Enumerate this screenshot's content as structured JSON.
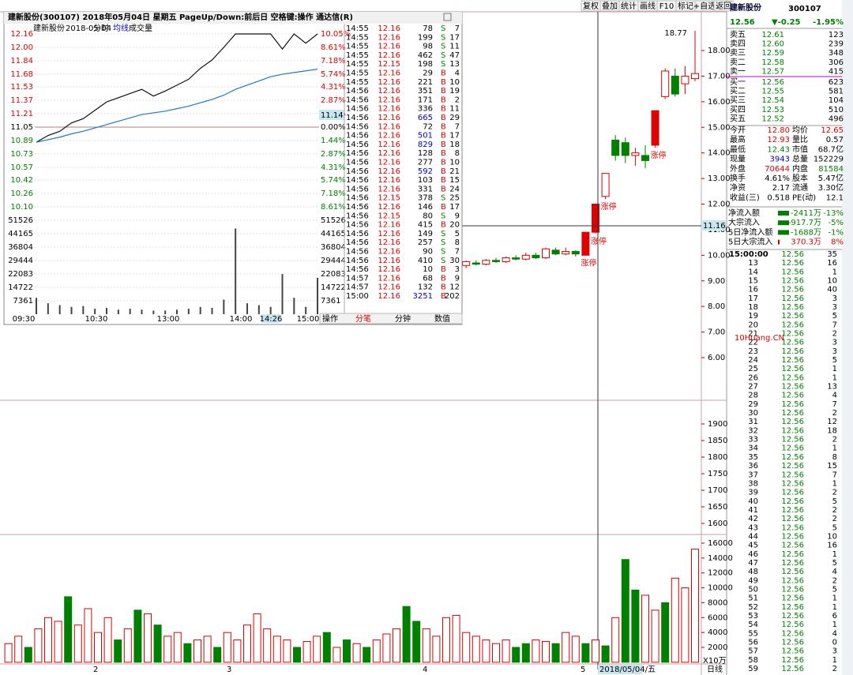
{
  "toolbar": {
    "buttons": [
      "复权",
      "叠加",
      "统计",
      "画线",
      "F10",
      "标记",
      "+自选",
      "返回"
    ]
  },
  "popup": {
    "title": "建新股份(300107) 2018年05月04日 星期五 PageUp/Down:前后日 空格键:操作 通达信(R)",
    "header": {
      "name": "建新股份",
      "date": "2018-05-04",
      "mode": "分时",
      "avg": "均线",
      "vol": "成交量"
    },
    "price_ticks": [
      "12.16",
      "12.00",
      "11.84",
      "11.68",
      "11.53",
      "11.37",
      "11.21",
      "11.05",
      "10.89",
      "10.73",
      "10.57",
      "10.42",
      "10.26",
      "10.10"
    ],
    "pct_ticks": [
      "10.05%",
      "8.61%",
      "7.18%",
      "5.74%",
      "4.31%",
      "2.87%",
      "1.44%",
      "0.00%",
      "1.44%",
      "2.87%",
      "4.31%",
      "5.74%",
      "7.18%",
      "8.61%"
    ],
    "vol_ticks": [
      "51526",
      "44165",
      "36804",
      "29444",
      "22083",
      "14722",
      "7361"
    ],
    "time_ticks": [
      "09:30",
      "10:30",
      "13:00",
      "14:00",
      "14:26",
      "15:00"
    ],
    "current": "11.14",
    "price": [
      10.87,
      10.95,
      11.0,
      11.1,
      11.15,
      11.25,
      11.35,
      11.4,
      11.45,
      11.5,
      11.42,
      11.48,
      11.55,
      11.62,
      11.75,
      11.85,
      12.0,
      12.16,
      12.16,
      12.16,
      12.16,
      11.98,
      12.16,
      12.05,
      12.16
    ],
    "avg": [
      10.87,
      10.9,
      10.93,
      10.97,
      11.0,
      11.04,
      11.08,
      11.12,
      11.16,
      11.2,
      11.22,
      11.24,
      11.27,
      11.3,
      11.34,
      11.38,
      11.43,
      11.5,
      11.55,
      11.6,
      11.65,
      11.68,
      11.7,
      11.72,
      11.74
    ],
    "volume": [
      9000,
      6000,
      5000,
      4000,
      4500,
      3000,
      3500,
      2500,
      3000,
      2500,
      2000,
      2000,
      2500,
      3000,
      4000,
      3500,
      8000,
      47000,
      6000,
      5000,
      4000,
      22000,
      9000,
      4000,
      20000
    ],
    "tabs": [
      "操作",
      "分笔",
      "分钟",
      "数值"
    ],
    "trades": [
      [
        "14:55",
        "12.16",
        "78",
        "S",
        "7"
      ],
      [
        "14:55",
        "12.16",
        "199",
        "S",
        "17"
      ],
      [
        "14:55",
        "12.16",
        "98",
        "S",
        "11"
      ],
      [
        "14:55",
        "12.16",
        "462",
        "S",
        "47"
      ],
      [
        "14:55",
        "12.15",
        "198",
        "S",
        "13"
      ],
      [
        "14:55",
        "12.16",
        "29",
        "B",
        "4"
      ],
      [
        "14:55",
        "12.16",
        "221",
        "B",
        "10"
      ],
      [
        "14:56",
        "12.16",
        "351",
        "B",
        "19"
      ],
      [
        "14:56",
        "12.16",
        "171",
        "B",
        "2"
      ],
      [
        "14:56",
        "12.16",
        "336",
        "B",
        "11"
      ],
      [
        "14:56",
        "12.16",
        "665",
        "B",
        "29"
      ],
      [
        "14:56",
        "12.16",
        "72",
        "B",
        "7"
      ],
      [
        "14:56",
        "12.16",
        "501",
        "B",
        "17"
      ],
      [
        "14:56",
        "12.16",
        "829",
        "B",
        "18"
      ],
      [
        "14:56",
        "12.16",
        "128",
        "B",
        "8"
      ],
      [
        "14:56",
        "12.16",
        "277",
        "B",
        "10"
      ],
      [
        "14:56",
        "12.16",
        "592",
        "B",
        "21"
      ],
      [
        "14:56",
        "12.16",
        "103",
        "B",
        "15"
      ],
      [
        "14:56",
        "12.16",
        "331",
        "B",
        "24"
      ],
      [
        "14:56",
        "12.15",
        "378",
        "S",
        "25"
      ],
      [
        "14:56",
        "12.16",
        "146",
        "B",
        "17"
      ],
      [
        "14:56",
        "12.15",
        "80",
        "S",
        "9"
      ],
      [
        "14:56",
        "12.16",
        "415",
        "B",
        "20"
      ],
      [
        "14:56",
        "12.16",
        "149",
        "S",
        "5"
      ],
      [
        "14:56",
        "12.16",
        "257",
        "S",
        "8"
      ],
      [
        "14:56",
        "12.16",
        "90",
        "S",
        "7"
      ],
      [
        "14:56",
        "12.16",
        "410",
        "S",
        "30"
      ],
      [
        "14:56",
        "12.16",
        "10",
        "B",
        "3"
      ],
      [
        "14:57",
        "12.16",
        "68",
        "B",
        "9"
      ],
      [
        "14:57",
        "12.16",
        "132",
        "B",
        "12"
      ],
      [
        "15:00",
        "12.16",
        "3251",
        "B",
        "202"
      ]
    ]
  },
  "main": {
    "price_ticks": [
      "18.00",
      "17.00",
      "16.00",
      "15.00",
      "14.00",
      "13.00",
      "12.00",
      "11.00",
      "10.00",
      "9.00",
      "8.00",
      "7.00",
      "6.00"
    ],
    "max_label": "18.77",
    "cross_label": "11.16",
    "candles": {
      "open": [
        9.6,
        9.7,
        9.65,
        9.8,
        9.75,
        9.9,
        9.85,
        10.0,
        9.9,
        10.2,
        10.05,
        10.15,
        10.0,
        10.9,
        12.3,
        14.5,
        14.4,
        13.9,
        13.9,
        14.3,
        16.2,
        17.0,
        16.7,
        16.9
      ],
      "close": [
        9.75,
        9.65,
        9.8,
        9.75,
        9.9,
        9.85,
        10.0,
        9.9,
        10.25,
        10.05,
        10.15,
        10.05,
        10.9,
        12.0,
        13.2,
        13.9,
        13.9,
        14.0,
        13.7,
        15.65,
        17.2,
        16.3,
        17.0,
        17.1
      ],
      "high": [
        9.8,
        9.8,
        9.85,
        9.9,
        9.95,
        10.0,
        10.1,
        10.1,
        10.3,
        10.3,
        10.3,
        10.2,
        10.9,
        12.0,
        13.2,
        14.7,
        14.6,
        14.2,
        14.3,
        15.65,
        17.3,
        17.3,
        17.4,
        18.77
      ],
      "low": [
        9.5,
        9.6,
        9.6,
        9.7,
        9.7,
        9.8,
        9.8,
        9.85,
        9.85,
        10.0,
        10.0,
        9.95,
        10.0,
        10.85,
        12.2,
        13.7,
        13.6,
        13.5,
        13.4,
        14.2,
        16.1,
        16.2,
        16.3,
        16.8
      ]
    },
    "annotations": [
      "涨停",
      "涨停",
      "涨停",
      "涨停"
    ],
    "indicator_ticks": [
      "1900",
      "1850",
      "1800",
      "1750",
      "1700",
      "1650",
      "1600"
    ],
    "volume_ticks": [
      "16000",
      "14000",
      "12000",
      "10000",
      "8000",
      "6000",
      "4000",
      "2000"
    ],
    "volume_unit": "X10万",
    "volumes": [
      2500,
      3500,
      2000,
      4500,
      6000,
      5500,
      8800,
      5000,
      7200,
      4000,
      6000,
      3000,
      4500,
      7000,
      6500,
      5000,
      3500,
      4000,
      2500,
      3000,
      3500,
      2000,
      4000,
      3000,
      5000,
      6500,
      4500,
      3500,
      3000,
      2000,
      2800,
      3500,
      4000,
      2000,
      3000,
      2500,
      2000,
      3000,
      3800,
      4500,
      7500,
      5500,
      4500,
      3500,
      6000,
      6300,
      4000,
      3500,
      3000,
      2500,
      3000,
      2000,
      2500,
      3000,
      2800,
      2500,
      4000,
      3500,
      2500,
      3000,
      2200,
      6000,
      13800,
      9700,
      9000,
      7000,
      8000,
      11300,
      10000,
      15200
    ],
    "volume_colors": [
      "r",
      "r",
      "g",
      "r",
      "r",
      "r",
      "g",
      "r",
      "r",
      "r",
      "r",
      "g",
      "r",
      "g",
      "r",
      "g",
      "r",
      "r",
      "g",
      "r",
      "r",
      "g",
      "r",
      "r",
      "r",
      "r",
      "r",
      "r",
      "r",
      "g",
      "r",
      "r",
      "g",
      "r",
      "g",
      "r",
      "g",
      "r",
      "r",
      "r",
      "g",
      "g",
      "r",
      "r",
      "r",
      "r",
      "r",
      "r",
      "r",
      "r",
      "r",
      "g",
      "g",
      "r",
      "r",
      "g",
      "r",
      "r",
      "g",
      "r",
      "g",
      "r",
      "g",
      "g",
      "r",
      "r",
      "g",
      "r",
      "r",
      "r"
    ],
    "date_ticks": [
      "2",
      "3",
      "4",
      "5"
    ],
    "cursor_date": "2018/05/04/五",
    "period": "日线",
    "watermark": "10Huang.CN"
  },
  "quote": {
    "name": "建新股份",
    "code": "300107",
    "price": "12.56",
    "change": "▼-0.25",
    "pct": "-1.95%",
    "asks": [
      [
        "卖五",
        "12.61",
        "123"
      ],
      [
        "卖四",
        "12.60",
        "239"
      ],
      [
        "卖三",
        "12.59",
        "348"
      ],
      [
        "卖二",
        "12.58",
        "306"
      ],
      [
        "卖一",
        "12.57",
        "415"
      ]
    ],
    "bids": [
      [
        "买一",
        "12.56",
        "623"
      ],
      [
        "买二",
        "12.55",
        "581"
      ],
      [
        "买三",
        "12.54",
        "104"
      ],
      [
        "买四",
        "12.53",
        "510"
      ],
      [
        "买五",
        "12.52",
        "496"
      ]
    ],
    "stats": [
      [
        "今开",
        "12.80",
        "均价",
        "12.65"
      ],
      [
        "最高",
        "12.93",
        "量比",
        "0.57"
      ],
      [
        "最低",
        "12.43",
        "市值",
        "68.7亿"
      ],
      [
        "现量",
        "3943",
        "总量",
        "152229"
      ],
      [
        "外盘",
        "70644",
        "内盘",
        "81584"
      ],
      [
        "换手",
        "4.61%",
        "股本",
        "5.47亿"
      ],
      [
        "净资",
        "2.17",
        "流通",
        "3.30亿"
      ],
      [
        "收益(三)",
        "0.518",
        "PE(动)",
        "12.1"
      ]
    ],
    "flows": [
      [
        "净流入额",
        "-2411万",
        "-13%"
      ],
      [
        "大宗流入",
        "-917.7万",
        "-5%"
      ],
      [
        "5日净流入额",
        "-1688万",
        "-1%"
      ],
      [
        "5日大宗流入",
        "370.3万",
        "8%"
      ]
    ],
    "ticks": [
      [
        "15:00:00",
        "12.56",
        "35"
      ],
      [
        "13",
        "12.56",
        "16"
      ],
      [
        "14",
        "12.56",
        "1"
      ],
      [
        "15",
        "12.56",
        "10"
      ],
      [
        "16",
        "12.56",
        "40"
      ],
      [
        "17",
        "12.56",
        "3"
      ],
      [
        "18",
        "12.56",
        "3"
      ],
      [
        "19",
        "12.56",
        "5"
      ],
      [
        "20",
        "12.56",
        "7"
      ],
      [
        "21",
        "12.56",
        "2"
      ],
      [
        "22",
        "12.56",
        "3"
      ],
      [
        "23",
        "12.56",
        "3"
      ],
      [
        "24",
        "12.56",
        "5"
      ],
      [
        "25",
        "12.56",
        "1"
      ],
      [
        "26",
        "12.56",
        "1"
      ],
      [
        "27",
        "12.56",
        "13"
      ],
      [
        "28",
        "12.56",
        "4"
      ],
      [
        "29",
        "12.56",
        "7"
      ],
      [
        "30",
        "12.56",
        "2"
      ],
      [
        "31",
        "12.56",
        "12"
      ],
      [
        "32",
        "12.56",
        "18"
      ],
      [
        "33",
        "12.56",
        "2"
      ],
      [
        "34",
        "12.56",
        "1"
      ],
      [
        "35",
        "12.56",
        "8"
      ],
      [
        "36",
        "12.56",
        "15"
      ],
      [
        "37",
        "12.56",
        "7"
      ],
      [
        "38",
        "12.56",
        "1"
      ],
      [
        "39",
        "12.56",
        "2"
      ],
      [
        "40",
        "12.56",
        "5"
      ],
      [
        "41",
        "12.56",
        "2"
      ],
      [
        "42",
        "12.56",
        "2"
      ],
      [
        "43",
        "12.56",
        "5"
      ],
      [
        "44",
        "12.56",
        "10"
      ],
      [
        "45",
        "12.56",
        "16"
      ],
      [
        "46",
        "12.56",
        "1"
      ],
      [
        "47",
        "12.56",
        "5"
      ],
      [
        "48",
        "12.56",
        "4"
      ],
      [
        "49",
        "12.56",
        "2"
      ],
      [
        "50",
        "12.56",
        "5"
      ],
      [
        "51",
        "12.56",
        "1"
      ],
      [
        "52",
        "12.56",
        "1"
      ],
      [
        "53",
        "12.56",
        "6"
      ],
      [
        "54",
        "12.56",
        "1"
      ],
      [
        "55",
        "12.56",
        "4"
      ],
      [
        "56",
        "12.56",
        "0"
      ],
      [
        "57",
        "12.56",
        "3"
      ],
      [
        "58",
        "12.56",
        "1"
      ],
      [
        "59",
        "12.56",
        "2"
      ]
    ]
  }
}
